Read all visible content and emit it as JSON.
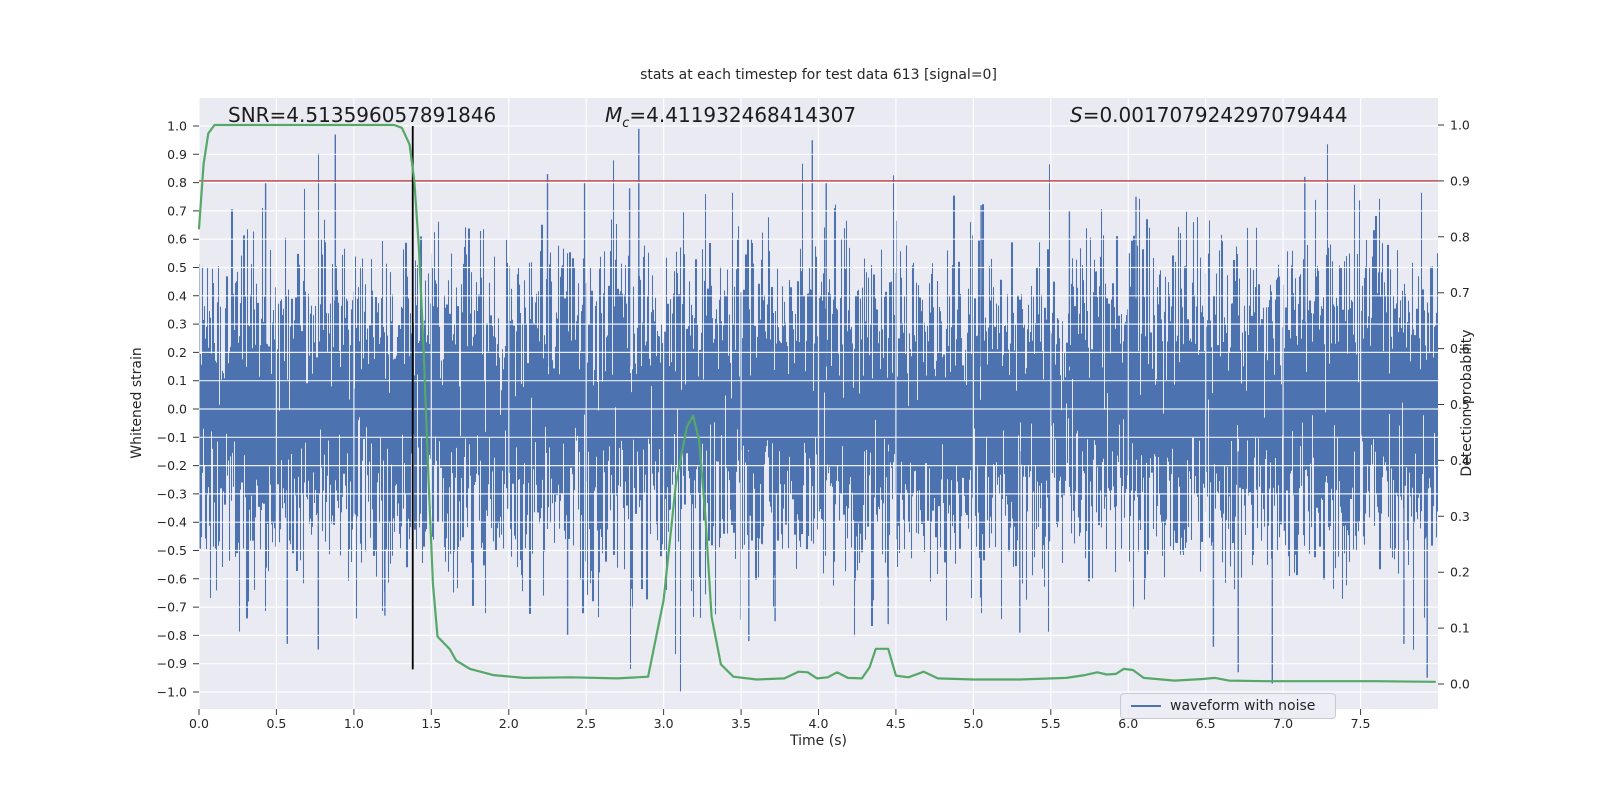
{
  "title": "stats at each timestep for test data 613 [signal=0]",
  "annotations": {
    "snr": "SNR=4.513596057891846",
    "mc_base": "M",
    "mc_sub": "c",
    "mc_rest": "=4.411932468414307",
    "s_base": "S",
    "s_rest": "=0.001707924297079444"
  },
  "axis_labels": {
    "left": "Whitened strain",
    "right": "Detection probability",
    "x": "Time (s)"
  },
  "legend": {
    "label": "waveform with noise"
  },
  "ticks": {
    "left_values": [
      1.0,
      0.9,
      0.8,
      0.7,
      0.6,
      0.5,
      0.4,
      0.3,
      0.2,
      0.1,
      0.0,
      -0.1,
      -0.2,
      -0.3,
      -0.4,
      -0.5,
      -0.6,
      -0.7,
      -0.8,
      -0.9,
      -1.0
    ],
    "left_labels": [
      "1.0",
      "0.9",
      "0.8",
      "0.7",
      "0.6",
      "0.5",
      "0.4",
      "0.3",
      "0.2",
      "0.1",
      "0.0",
      "−0.1",
      "−0.2",
      "−0.3",
      "−0.4",
      "−0.5",
      "−0.6",
      "−0.7",
      "−0.8",
      "−0.9",
      "−1.0"
    ],
    "right_values": [
      1.0,
      0.9,
      0.8,
      0.7,
      0.6,
      0.5,
      0.4,
      0.3,
      0.2,
      0.1,
      0.0
    ],
    "right_labels": [
      "1.0",
      "0.9",
      "0.8",
      "0.7",
      "0.6",
      "0.5",
      "0.4",
      "0.3",
      "0.2",
      "0.1",
      "0.0"
    ],
    "x_values": [
      0.0,
      0.5,
      1.0,
      1.5,
      2.0,
      2.5,
      3.0,
      3.5,
      4.0,
      4.5,
      5.0,
      5.5,
      6.0,
      6.5,
      7.0,
      7.5
    ],
    "x_labels": [
      "0.0",
      "0.5",
      "1.0",
      "1.5",
      "2.0",
      "2.5",
      "3.0",
      "3.5",
      "4.0",
      "4.5",
      "5.0",
      "5.5",
      "6.0",
      "6.5",
      "7.0",
      "7.5"
    ]
  },
  "colors": {
    "figure_bg": "#ffffff",
    "plot_bg": "#eaeaf2",
    "grid": "#ffffff",
    "waveform": "#4c72b0",
    "probability": "#55a868",
    "threshold": "#c44e52",
    "marker": "#000000",
    "text": "#262626"
  },
  "chart_data": {
    "type": "line",
    "title": "stats at each timestep for test data 613 [signal=0]",
    "xlabel": "Time (s)",
    "ylabel_left": "Whitened strain",
    "ylabel_right": "Detection probability",
    "x_range": [
      0,
      8
    ],
    "left_ylim": [
      -1.06,
      1.1
    ],
    "right_ylim": [
      -0.045,
      1.048
    ],
    "grid": true,
    "legend_position": "lower right",
    "series": [
      {
        "name": "waveform with noise",
        "kind": "noise",
        "axis": "left",
        "color": "#4c72b0",
        "description": "dense gaussian whitened-strain noise filling the axes, mean 0, typical envelope ±0.35, rare spikes to ±1.0",
        "sigma": 0.265,
        "samples_per_pixel": 6,
        "seed": 613,
        "clamp": 1.0,
        "notable_spikes_up": [
          [
            0.43,
            0.8
          ],
          [
            0.88,
            0.97
          ],
          [
            2.25,
            0.83
          ],
          [
            2.49,
            0.8
          ],
          [
            2.78,
            0.78
          ],
          [
            2.84,
            0.99
          ],
          [
            3.96,
            0.95
          ],
          [
            4.05,
            0.8
          ],
          [
            5.05,
            0.72
          ],
          [
            5.62,
            0.7
          ],
          [
            6.05,
            0.75
          ],
          [
            7.14,
            0.82
          ]
        ],
        "notable_spikes_down": [
          [
            0.57,
            -0.83
          ],
          [
            0.77,
            -0.85
          ],
          [
            1.2,
            -0.73
          ],
          [
            2.38,
            -0.8
          ],
          [
            3.55,
            -0.82
          ],
          [
            3.72,
            -0.75
          ],
          [
            4.45,
            -0.76
          ],
          [
            5.3,
            -0.79
          ],
          [
            6.55,
            -0.84
          ],
          [
            6.71,
            -0.93
          ],
          [
            6.93,
            -0.97
          ],
          [
            7.78,
            -0.83
          ],
          [
            7.93,
            -0.95
          ]
        ]
      },
      {
        "name": "detection probability",
        "kind": "line",
        "axis": "right",
        "color": "#55a868",
        "points": [
          [
            0.0,
            0.815
          ],
          [
            0.03,
            0.93
          ],
          [
            0.06,
            0.985
          ],
          [
            0.1,
            1.0
          ],
          [
            1.26,
            1.0
          ],
          [
            1.31,
            0.995
          ],
          [
            1.36,
            0.965
          ],
          [
            1.39,
            0.9
          ],
          [
            1.42,
            0.78
          ],
          [
            1.45,
            0.6
          ],
          [
            1.48,
            0.38
          ],
          [
            1.51,
            0.18
          ],
          [
            1.54,
            0.085
          ],
          [
            1.62,
            0.062
          ],
          [
            1.66,
            0.042
          ],
          [
            1.75,
            0.027
          ],
          [
            1.9,
            0.016
          ],
          [
            2.1,
            0.011
          ],
          [
            2.4,
            0.012
          ],
          [
            2.7,
            0.01
          ],
          [
            2.9,
            0.013
          ],
          [
            3.0,
            0.15
          ],
          [
            3.08,
            0.36
          ],
          [
            3.15,
            0.46
          ],
          [
            3.19,
            0.48
          ],
          [
            3.23,
            0.435
          ],
          [
            3.27,
            0.3
          ],
          [
            3.31,
            0.12
          ],
          [
            3.37,
            0.035
          ],
          [
            3.45,
            0.013
          ],
          [
            3.6,
            0.008
          ],
          [
            3.78,
            0.01
          ],
          [
            3.87,
            0.022
          ],
          [
            3.93,
            0.021
          ],
          [
            3.99,
            0.01
          ],
          [
            4.06,
            0.012
          ],
          [
            4.12,
            0.021
          ],
          [
            4.19,
            0.011
          ],
          [
            4.28,
            0.01
          ],
          [
            4.33,
            0.03
          ],
          [
            4.37,
            0.063
          ],
          [
            4.45,
            0.063
          ],
          [
            4.5,
            0.015
          ],
          [
            4.58,
            0.012
          ],
          [
            4.68,
            0.022
          ],
          [
            4.77,
            0.01
          ],
          [
            5.0,
            0.008
          ],
          [
            5.3,
            0.008
          ],
          [
            5.6,
            0.011
          ],
          [
            5.72,
            0.016
          ],
          [
            5.8,
            0.021
          ],
          [
            5.86,
            0.017
          ],
          [
            5.92,
            0.018
          ],
          [
            5.97,
            0.027
          ],
          [
            6.03,
            0.025
          ],
          [
            6.1,
            0.011
          ],
          [
            6.3,
            0.006
          ],
          [
            6.48,
            0.009
          ],
          [
            6.56,
            0.011
          ],
          [
            6.65,
            0.006
          ],
          [
            6.9,
            0.005
          ],
          [
            7.3,
            0.005
          ],
          [
            7.6,
            0.005
          ],
          [
            7.98,
            0.004
          ]
        ]
      },
      {
        "name": "threshold",
        "kind": "hline",
        "axis": "right",
        "color": "#c44e52",
        "y": 0.9
      },
      {
        "name": "event marker",
        "kind": "vline",
        "axis": "left",
        "color": "#000000",
        "x": 1.38,
        "y_span": [
          -0.92,
          1.0
        ]
      }
    ]
  }
}
